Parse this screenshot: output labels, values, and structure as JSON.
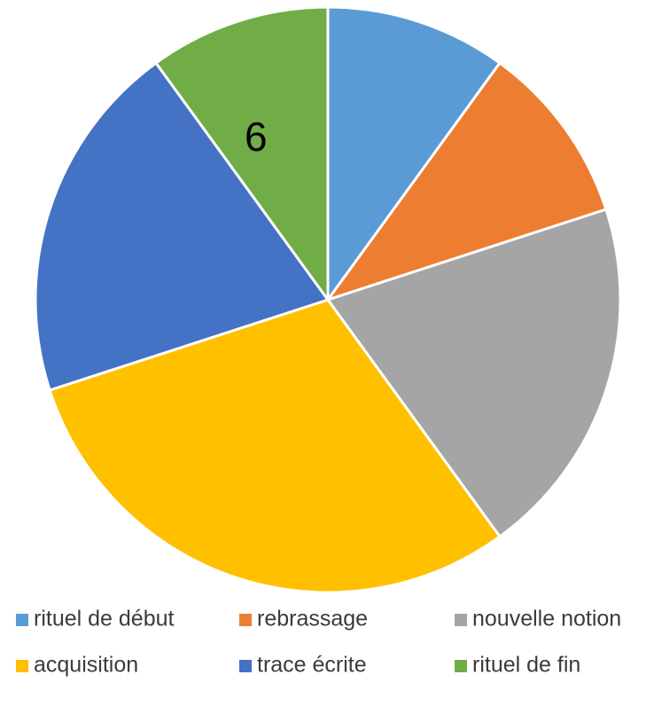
{
  "chart_data": {
    "type": "pie",
    "categories": [
      "rituel de début",
      "rebrassage",
      "nouvelle notion",
      "acquisition",
      "trace écrite",
      "rituel de fin"
    ],
    "values": [
      6,
      6,
      12,
      18,
      12,
      6
    ],
    "value_labels": [
      null,
      null,
      null,
      null,
      null,
      "6"
    ],
    "colors": [
      "#5b9bd5",
      "#ed7d31",
      "#a5a5a5",
      "#ffc000",
      "#4472c4",
      "#70ad47"
    ],
    "legend": "bottom"
  }
}
